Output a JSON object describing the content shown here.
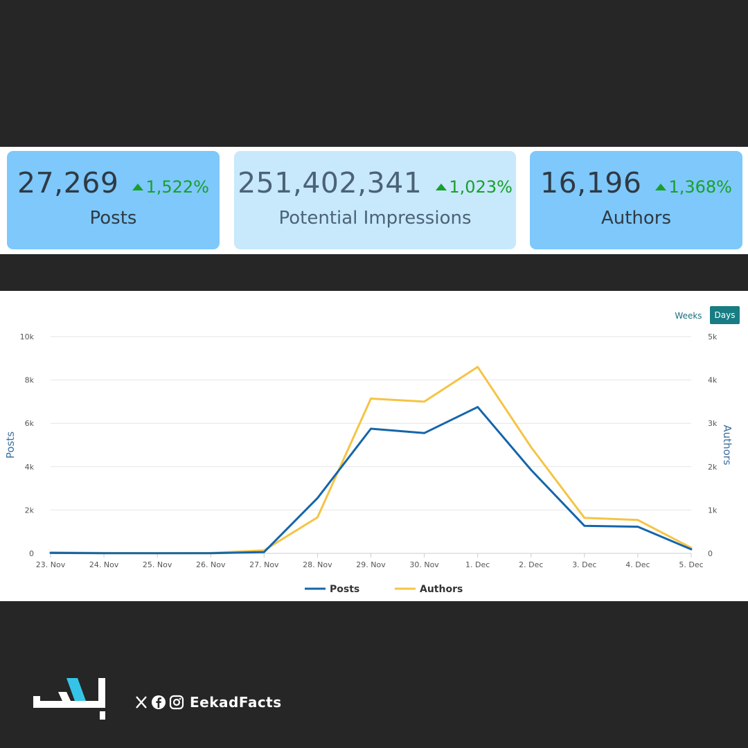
{
  "stats": [
    {
      "value": "27,269",
      "change": "1,522%",
      "label": "Posts"
    },
    {
      "value": "251,402,341",
      "change": "1,023%",
      "label": "Potential Impressions"
    },
    {
      "value": "16,196",
      "change": "1,368%",
      "label": "Authors"
    }
  ],
  "controls": {
    "weeks_label": "Weeks",
    "days_label": "Days"
  },
  "chart_data": {
    "type": "line",
    "categories": [
      "23. Nov",
      "24. Nov",
      "25. Nov",
      "26. Nov",
      "27. Nov",
      "28. Nov",
      "29. Nov",
      "30. Nov",
      "1. Dec",
      "2. Dec",
      "3. Dec",
      "4. Dec",
      "5. Dec"
    ],
    "series": [
      {
        "name": "Posts",
        "axis": "left",
        "color": "#1565a9",
        "values": [
          20,
          10,
          5,
          10,
          60,
          2550,
          5750,
          5550,
          6750,
          3850,
          1270,
          1230,
          190
        ]
      },
      {
        "name": "Authors",
        "axis": "right",
        "color": "#f5c445",
        "values": [
          25,
          10,
          5,
          10,
          70,
          830,
          3570,
          3500,
          4300,
          2450,
          820,
          770,
          130
        ]
      }
    ],
    "y_left": {
      "label": "Posts",
      "range": [
        0,
        10000
      ],
      "ticks": [
        0,
        2000,
        4000,
        6000,
        8000,
        10000
      ],
      "tick_labels": [
        "0",
        "2k",
        "4k",
        "6k",
        "8k",
        "10k"
      ]
    },
    "y_right": {
      "label": "Authors",
      "range": [
        0,
        5000
      ],
      "ticks": [
        0,
        1000,
        2000,
        3000,
        4000,
        5000
      ],
      "tick_labels": [
        "0",
        "1k",
        "2k",
        "3k",
        "4k",
        "5k"
      ]
    },
    "legend": "bottom-center",
    "grid": true
  },
  "footer": {
    "handle": "EekadFacts",
    "brand_colors": {
      "primary": "#ffffff",
      "accent": "#35c4e8"
    }
  }
}
